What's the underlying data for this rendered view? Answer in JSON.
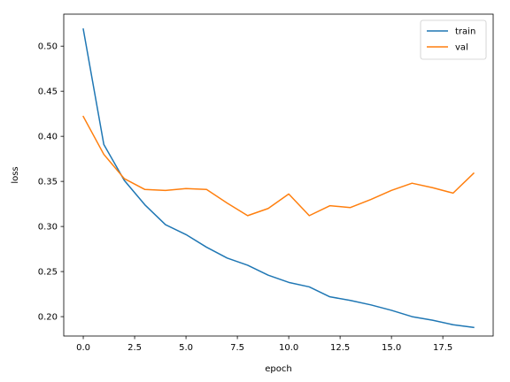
{
  "chart_data": {
    "type": "line",
    "xlabel": "epoch",
    "ylabel": "loss",
    "xlim": [
      -0.95,
      19.95
    ],
    "ylim": [
      0.1785,
      0.5355
    ],
    "xticks": [
      0.0,
      2.5,
      5.0,
      7.5,
      10.0,
      12.5,
      15.0,
      17.5
    ],
    "xtick_labels": [
      "0.0",
      "2.5",
      "5.0",
      "7.5",
      "10.0",
      "12.5",
      "15.0",
      "17.5"
    ],
    "yticks": [
      0.2,
      0.25,
      0.3,
      0.35,
      0.4,
      0.45,
      0.5
    ],
    "ytick_labels": [
      "0.20",
      "0.25",
      "0.30",
      "0.35",
      "0.40",
      "0.45",
      "0.50"
    ],
    "grid": false,
    "legend_position": "top-right",
    "x": [
      0,
      1,
      2,
      3,
      4,
      5,
      6,
      7,
      8,
      9,
      10,
      11,
      12,
      13,
      14,
      15,
      16,
      17,
      18,
      19
    ],
    "series": [
      {
        "name": "train",
        "color": "#1f77b4",
        "values": [
          0.519,
          0.391,
          0.351,
          0.324,
          0.302,
          0.291,
          0.277,
          0.265,
          0.257,
          0.246,
          0.238,
          0.233,
          0.222,
          0.218,
          0.213,
          0.207,
          0.2,
          0.196,
          0.191,
          0.188
        ]
      },
      {
        "name": "val",
        "color": "#ff7f0e",
        "values": [
          0.422,
          0.38,
          0.353,
          0.341,
          0.34,
          0.342,
          0.341,
          0.326,
          0.312,
          0.32,
          0.336,
          0.312,
          0.323,
          0.321,
          0.33,
          0.34,
          0.348,
          0.343,
          0.337,
          0.359
        ]
      }
    ]
  }
}
